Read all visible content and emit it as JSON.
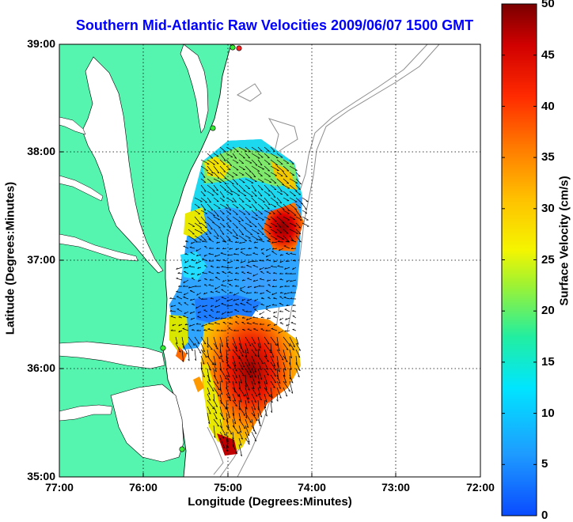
{
  "title": "Southern Mid-Atlantic Raw Velocities 2009/06/07 1500 GMT",
  "x_axis": {
    "label": "Longitude (Degrees:Minutes)",
    "ticks": [
      "77:00",
      "76:00",
      "75:00",
      "74:00",
      "73:00",
      "72:00"
    ]
  },
  "y_axis": {
    "label": "Latitude (Degrees:Minutes)",
    "ticks": [
      "39:00",
      "38:00",
      "37:00",
      "36:00",
      "35:00"
    ]
  },
  "colorbar": {
    "label": "Surface Velocity (cm/s)",
    "ticks": [
      "50",
      "45",
      "40",
      "35",
      "30",
      "25",
      "20",
      "15",
      "10",
      "5",
      "0"
    ],
    "range": [
      0,
      50
    ]
  },
  "colors": {
    "land": "#55f5b0",
    "title": "#0000ff",
    "station": "#33ee33",
    "station_hot": "#ff2222",
    "vector": "#000000",
    "bathymetry": "#8c8c8c"
  },
  "map_view": {
    "lon_range": [
      -77,
      -72
    ],
    "lat_range": [
      35,
      39
    ],
    "grid": true
  }
}
